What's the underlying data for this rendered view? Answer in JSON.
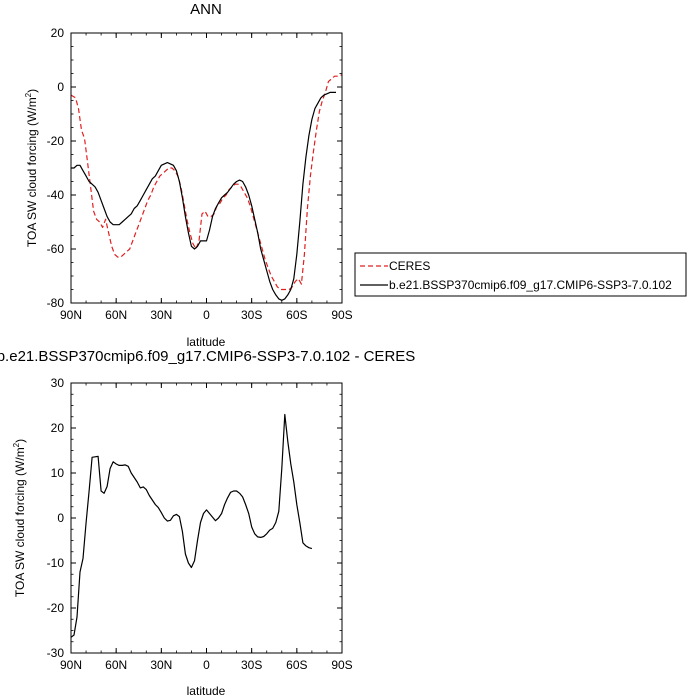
{
  "chart_data": [
    {
      "type": "line",
      "title": "ANN",
      "xlabel": "latitude",
      "ylabel": "TOA SW cloud forcing (W/m",
      "ylabel_sup": "2",
      "ylabel_close": ")",
      "xlim": [
        90,
        -90
      ],
      "ylim": [
        -80,
        20
      ],
      "xticks": [
        {
          "v": 90,
          "label": "90N"
        },
        {
          "v": 60,
          "label": "60N"
        },
        {
          "v": 30,
          "label": "30N"
        },
        {
          "v": 0,
          "label": "0"
        },
        {
          "v": -30,
          "label": "30S"
        },
        {
          "v": -60,
          "label": "60S"
        },
        {
          "v": -90,
          "label": "90S"
        }
      ],
      "yticks": [
        20,
        0,
        -20,
        -40,
        -60,
        -80
      ],
      "legend_position": "right",
      "series": [
        {
          "name": "CERES",
          "color": "#e02020",
          "dash": "dashed",
          "points": [
            [
              90,
              -3
            ],
            [
              87,
              -4
            ],
            [
              85,
              -8
            ],
            [
              83,
              -16
            ],
            [
              81,
              -19
            ],
            [
              79,
              -28
            ],
            [
              77,
              -37
            ],
            [
              75,
              -46
            ],
            [
              73,
              -49
            ],
            [
              71,
              -50
            ],
            [
              69,
              -52
            ],
            [
              67,
              -49
            ],
            [
              65,
              -54
            ],
            [
              63,
              -59
            ],
            [
              61,
              -62
            ],
            [
              59,
              -63
            ],
            [
              57,
              -63
            ],
            [
              55,
              -62
            ],
            [
              53,
              -61
            ],
            [
              51,
              -60
            ],
            [
              49,
              -57
            ],
            [
              47,
              -54
            ],
            [
              45,
              -51
            ],
            [
              43,
              -48
            ],
            [
              41,
              -45
            ],
            [
              39,
              -42
            ],
            [
              37,
              -40
            ],
            [
              35,
              -37
            ],
            [
              33,
              -35
            ],
            [
              31,
              -33
            ],
            [
              29,
              -32
            ],
            [
              27,
              -31
            ],
            [
              25,
              -30
            ],
            [
              23,
              -30
            ],
            [
              21,
              -31
            ],
            [
              19,
              -33
            ],
            [
              17,
              -37
            ],
            [
              15,
              -43
            ],
            [
              13,
              -49
            ],
            [
              11,
              -54
            ],
            [
              9,
              -58
            ],
            [
              7,
              -60
            ],
            [
              5,
              -57
            ],
            [
              3,
              -47
            ],
            [
              1,
              -46
            ],
            [
              -1,
              -48
            ],
            [
              -3,
              -48
            ],
            [
              -5,
              -47
            ],
            [
              -7,
              -44
            ],
            [
              -9,
              -43
            ],
            [
              -11,
              -41
            ],
            [
              -13,
              -40
            ],
            [
              -15,
              -38
            ],
            [
              -17,
              -37
            ],
            [
              -19,
              -36
            ],
            [
              -21,
              -36
            ],
            [
              -23,
              -37
            ],
            [
              -25,
              -39
            ],
            [
              -27,
              -41
            ],
            [
              -29,
              -44
            ],
            [
              -31,
              -48
            ],
            [
              -33,
              -52
            ],
            [
              -35,
              -56
            ],
            [
              -37,
              -60
            ],
            [
              -39,
              -64
            ],
            [
              -41,
              -67
            ],
            [
              -43,
              -70
            ],
            [
              -45,
              -72
            ],
            [
              -47,
              -74
            ],
            [
              -49,
              -75
            ],
            [
              -51,
              -75
            ],
            [
              -53,
              -75
            ],
            [
              -55,
              -75
            ],
            [
              -57,
              -74
            ],
            [
              -59,
              -72
            ],
            [
              -61,
              -71
            ],
            [
              -63,
              -73
            ],
            [
              -65,
              -62
            ],
            [
              -67,
              -45
            ],
            [
              -69,
              -33
            ],
            [
              -71,
              -24
            ],
            [
              -73,
              -16
            ],
            [
              -75,
              -9
            ],
            [
              -77,
              -5
            ],
            [
              -79,
              -2
            ],
            [
              -81,
              2
            ],
            [
              -83,
              3
            ],
            [
              -85,
              4
            ],
            [
              -87,
              4
            ],
            [
              -90,
              4.5
            ]
          ]
        },
        {
          "name": "b.e21.BSSP370cmip6.f09_g17.CMIP6-SSP3-7.0.102",
          "color": "#000000",
          "dash": "solid",
          "points": [
            [
              90,
              -30
            ],
            [
              88,
              -30
            ],
            [
              86,
              -29
            ],
            [
              84,
              -29
            ],
            [
              82,
              -31
            ],
            [
              80,
              -33
            ],
            [
              78,
              -35
            ],
            [
              76,
              -36
            ],
            [
              74,
              -37
            ],
            [
              72,
              -39
            ],
            [
              70,
              -42
            ],
            [
              68,
              -45
            ],
            [
              66,
              -48
            ],
            [
              64,
              -50
            ],
            [
              62,
              -51
            ],
            [
              60,
              -51
            ],
            [
              58,
              -51
            ],
            [
              56,
              -50
            ],
            [
              54,
              -49
            ],
            [
              52,
              -48
            ],
            [
              50,
              -47
            ],
            [
              48,
              -45
            ],
            [
              46,
              -44
            ],
            [
              44,
              -42
            ],
            [
              42,
              -40
            ],
            [
              40,
              -38
            ],
            [
              38,
              -36
            ],
            [
              36,
              -34
            ],
            [
              34,
              -33
            ],
            [
              32,
              -31
            ],
            [
              30,
              -29
            ],
            [
              28,
              -28.5
            ],
            [
              26,
              -28
            ],
            [
              24,
              -28.5
            ],
            [
              22,
              -29
            ],
            [
              20,
              -31
            ],
            [
              18,
              -35
            ],
            [
              16,
              -41
            ],
            [
              14,
              -48
            ],
            [
              12,
              -54
            ],
            [
              10,
              -59
            ],
            [
              8,
              -60
            ],
            [
              6,
              -59
            ],
            [
              4,
              -57
            ],
            [
              2,
              -57
            ],
            [
              0,
              -57
            ],
            [
              -2,
              -53
            ],
            [
              -4,
              -48
            ],
            [
              -6,
              -45
            ],
            [
              -8,
              -43
            ],
            [
              -10,
              -41
            ],
            [
              -12,
              -40
            ],
            [
              -14,
              -39
            ],
            [
              -16,
              -37.5
            ],
            [
              -18,
              -36
            ],
            [
              -20,
              -35
            ],
            [
              -22,
              -34.5
            ],
            [
              -24,
              -35
            ],
            [
              -26,
              -37
            ],
            [
              -28,
              -40
            ],
            [
              -30,
              -44
            ],
            [
              -32,
              -49
            ],
            [
              -34,
              -54
            ],
            [
              -36,
              -60
            ],
            [
              -38,
              -64
            ],
            [
              -40,
              -68
            ],
            [
              -42,
              -72
            ],
            [
              -44,
              -75
            ],
            [
              -46,
              -77
            ],
            [
              -48,
              -78.5
            ],
            [
              -50,
              -79
            ],
            [
              -52,
              -78.5
            ],
            [
              -54,
              -77
            ],
            [
              -56,
              -75
            ],
            [
              -58,
              -71
            ],
            [
              -60,
              -62
            ],
            [
              -62,
              -50
            ],
            [
              -64,
              -36
            ],
            [
              -66,
              -26
            ],
            [
              -68,
              -18
            ],
            [
              -70,
              -12
            ],
            [
              -72,
              -8
            ],
            [
              -74,
              -6
            ],
            [
              -76,
              -4
            ],
            [
              -78,
              -3
            ],
            [
              -80,
              -2.5
            ],
            [
              -82,
              -2
            ],
            [
              -84,
              -2
            ],
            [
              -86,
              -2
            ]
          ]
        }
      ]
    },
    {
      "type": "line",
      "title": "b.e21.BSSP370cmip6.f09_g17.CMIP6-SSP3-7.0.102 - CERES",
      "xlabel": "latitude",
      "ylabel": "TOA SW cloud forcing (W/m",
      "ylabel_sup": "2",
      "ylabel_close": ")",
      "xlim": [
        90,
        -90
      ],
      "ylim": [
        -30,
        30
      ],
      "xticks": [
        {
          "v": 90,
          "label": "90N"
        },
        {
          "v": 60,
          "label": "60N"
        },
        {
          "v": 30,
          "label": "30N"
        },
        {
          "v": 0,
          "label": "0"
        },
        {
          "v": -30,
          "label": "30S"
        },
        {
          "v": -60,
          "label": "60S"
        },
        {
          "v": -90,
          "label": "90S"
        }
      ],
      "yticks": [
        30,
        20,
        10,
        0,
        -10,
        -20,
        -30
      ],
      "series": [
        {
          "color": "#000000",
          "dash": "solid",
          "points": [
            [
              90,
              -26.5
            ],
            [
              88,
              -26
            ],
            [
              86,
              -22
            ],
            [
              84,
              -12
            ],
            [
              82,
              -9
            ],
            [
              80,
              -1
            ],
            [
              78,
              6
            ],
            [
              76,
              13.5
            ],
            [
              74,
              13.6
            ],
            [
              72,
              13.7
            ],
            [
              70,
              6
            ],
            [
              68,
              5.5
            ],
            [
              66,
              7
            ],
            [
              64,
              11
            ],
            [
              62,
              12.5
            ],
            [
              60,
              12
            ],
            [
              58,
              11.7
            ],
            [
              56,
              11.7
            ],
            [
              54,
              11.8
            ],
            [
              52,
              11.5
            ],
            [
              50,
              10
            ],
            [
              48,
              9
            ],
            [
              46,
              8
            ],
            [
              44,
              6.7
            ],
            [
              42,
              6.9
            ],
            [
              40,
              6.3
            ],
            [
              38,
              5
            ],
            [
              36,
              4
            ],
            [
              34,
              3
            ],
            [
              32,
              2.3
            ],
            [
              30,
              1.2
            ],
            [
              28,
              0
            ],
            [
              26,
              -0.7
            ],
            [
              24,
              -0.5
            ],
            [
              22,
              0.5
            ],
            [
              20,
              0.8
            ],
            [
              18,
              0.3
            ],
            [
              16,
              -3
            ],
            [
              14,
              -8
            ],
            [
              12,
              -10
            ],
            [
              10,
              -11
            ],
            [
              8,
              -9.5
            ],
            [
              6,
              -5
            ],
            [
              4,
              -1
            ],
            [
              2,
              1
            ],
            [
              0,
              1.8
            ],
            [
              -2,
              1
            ],
            [
              -4,
              0.2
            ],
            [
              -6,
              -0.6
            ],
            [
              -8,
              0
            ],
            [
              -10,
              1
            ],
            [
              -12,
              3
            ],
            [
              -14,
              4.5
            ],
            [
              -16,
              5.7
            ],
            [
              -18,
              6
            ],
            [
              -20,
              6
            ],
            [
              -22,
              5.5
            ],
            [
              -24,
              4.7
            ],
            [
              -26,
              3
            ],
            [
              -28,
              1
            ],
            [
              -30,
              -2
            ],
            [
              -32,
              -3.5
            ],
            [
              -34,
              -4.2
            ],
            [
              -36,
              -4.3
            ],
            [
              -38,
              -4.1
            ],
            [
              -40,
              -3.5
            ],
            [
              -42,
              -2.7
            ],
            [
              -44,
              -2.3
            ],
            [
              -46,
              -1
            ],
            [
              -48,
              1.5
            ],
            [
              -50,
              11
            ],
            [
              -52,
              23
            ],
            [
              -54,
              17
            ],
            [
              -56,
              12
            ],
            [
              -58,
              8
            ],
            [
              -60,
              3
            ],
            [
              -62,
              -1
            ],
            [
              -64,
              -5.5
            ],
            [
              -66,
              -6.2
            ],
            [
              -68,
              -6.6
            ],
            [
              -70,
              -6.8
            ]
          ]
        }
      ]
    }
  ]
}
